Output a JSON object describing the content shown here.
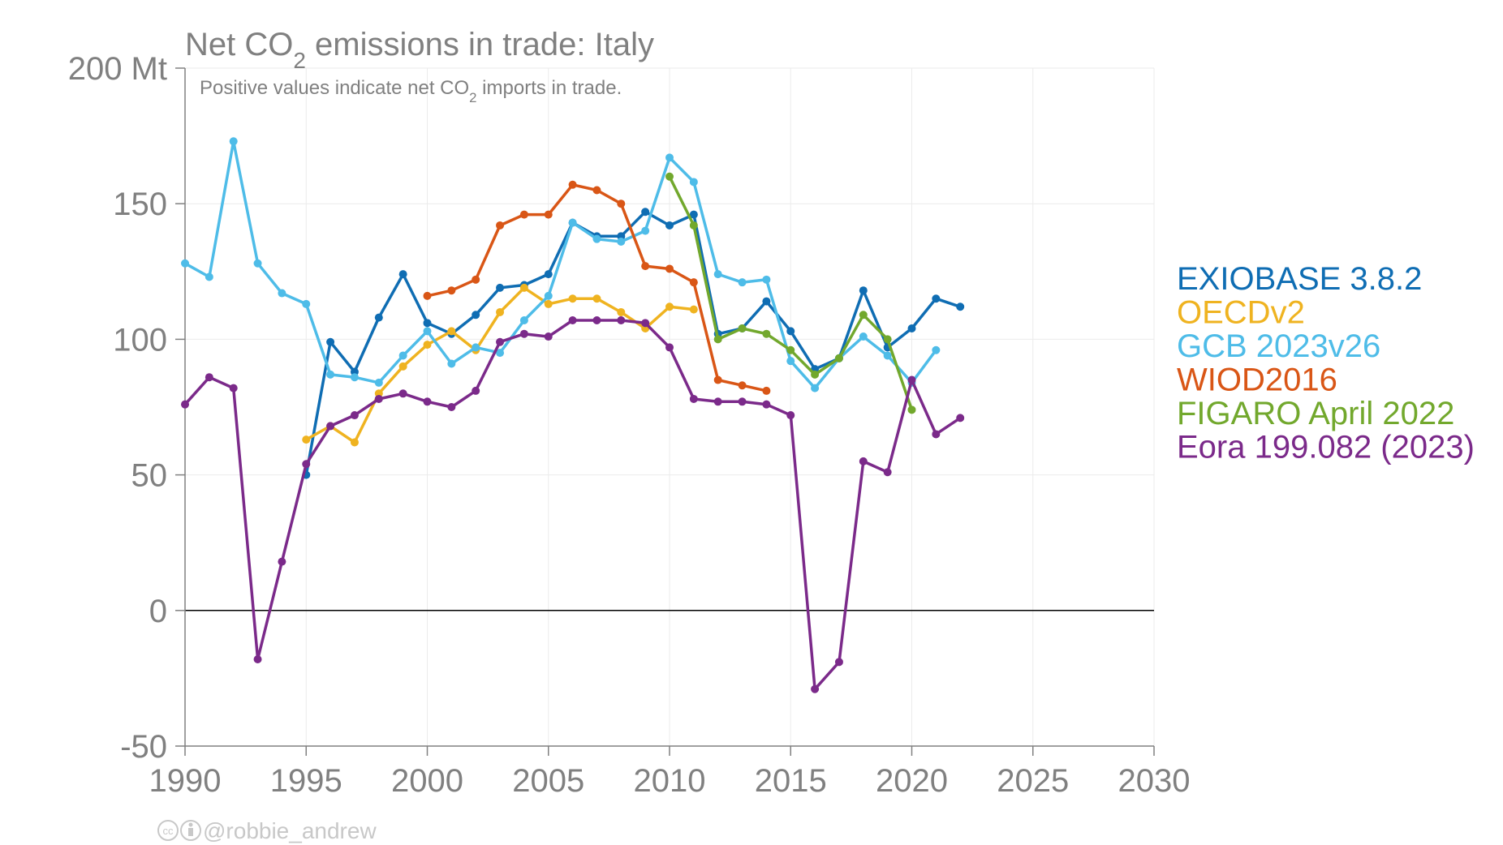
{
  "chart_data": {
    "type": "line",
    "title": "Net CO₂ emissions in trade: Italy",
    "subtitle": "Positive values indicate net CO₂ imports in trade.",
    "y_unit": "Mt",
    "xlabel": "",
    "ylabel": "",
    "xlim": [
      1990,
      2030
    ],
    "ylim": [
      -50,
      200
    ],
    "x_ticks": [
      1990,
      1995,
      2000,
      2005,
      2010,
      2015,
      2020,
      2025,
      2030
    ],
    "y_ticks": [
      -50,
      0,
      50,
      100,
      150,
      200
    ],
    "y_tick_labels": [
      "-50",
      "0",
      "50",
      "100",
      "150",
      "200 Mt"
    ],
    "grid": true,
    "legend_position": "right",
    "series": [
      {
        "name": "EXIOBASE 3.8.2",
        "color": "#0f6db3",
        "x": [
          1995,
          1996,
          1997,
          1998,
          1999,
          2000,
          2001,
          2002,
          2003,
          2004,
          2005,
          2006,
          2007,
          2008,
          2009,
          2010,
          2011,
          2012,
          2013,
          2014,
          2015,
          2016,
          2017,
          2018,
          2019,
          2020,
          2021,
          2022
        ],
        "y": [
          50,
          99,
          88,
          108,
          124,
          106,
          102,
          109,
          119,
          120,
          124,
          143,
          138,
          138,
          147,
          142,
          146,
          102,
          104,
          114,
          103,
          89,
          93,
          118,
          97,
          104,
          115,
          112
        ]
      },
      {
        "name": "OECDv2",
        "color": "#efb320",
        "x": [
          1995,
          1996,
          1997,
          1998,
          1999,
          2000,
          2001,
          2002,
          2003,
          2004,
          2005,
          2006,
          2007,
          2008,
          2009,
          2010,
          2011
        ],
        "y": [
          63,
          68,
          62,
          80,
          90,
          98,
          103,
          96,
          110,
          119,
          113,
          115,
          115,
          110,
          104,
          112,
          111
        ]
      },
      {
        "name": "GCB 2023v26",
        "color": "#4ebce8",
        "x": [
          1990,
          1991,
          1992,
          1993,
          1994,
          1995,
          1996,
          1997,
          1998,
          1999,
          2000,
          2001,
          2002,
          2003,
          2004,
          2005,
          2006,
          2007,
          2008,
          2009,
          2010,
          2011,
          2012,
          2013,
          2014,
          2015,
          2016,
          2017,
          2018,
          2019,
          2020,
          2021
        ],
        "y": [
          128,
          123,
          173,
          128,
          117,
          113,
          87,
          86,
          84,
          94,
          103,
          91,
          97,
          95,
          107,
          116,
          143,
          137,
          136,
          140,
          167,
          158,
          124,
          121,
          122,
          92,
          82,
          93,
          101,
          94,
          84,
          96
        ]
      },
      {
        "name": "WIOD2016",
        "color": "#d95616",
        "x": [
          2000,
          2001,
          2002,
          2003,
          2004,
          2005,
          2006,
          2007,
          2008,
          2009,
          2010,
          2011,
          2012,
          2013,
          2014
        ],
        "y": [
          116,
          118,
          122,
          142,
          146,
          146,
          157,
          155,
          150,
          127,
          126,
          121,
          85,
          83,
          81
        ]
      },
      {
        "name": "FIGARO April 2022",
        "color": "#72a82d",
        "x": [
          2010,
          2011,
          2012,
          2013,
          2014,
          2015,
          2016,
          2017,
          2018,
          2019,
          2020
        ],
        "y": [
          160,
          142,
          100,
          104,
          102,
          96,
          87,
          93,
          109,
          100,
          74
        ]
      },
      {
        "name": "Eora 199.082 (2023)",
        "color": "#7b2a8a",
        "x": [
          1990,
          1991,
          1992,
          1993,
          1994,
          1995,
          1996,
          1997,
          1998,
          1999,
          2000,
          2001,
          2002,
          2003,
          2004,
          2005,
          2006,
          2007,
          2008,
          2009,
          2010,
          2011,
          2012,
          2013,
          2014,
          2015,
          2016,
          2017,
          2018,
          2019,
          2020,
          2021,
          2022
        ],
        "y": [
          76,
          86,
          82,
          -18,
          18,
          54,
          68,
          72,
          78,
          80,
          77,
          75,
          81,
          99,
          102,
          101,
          107,
          107,
          107,
          106,
          97,
          78,
          77,
          77,
          76,
          72,
          -29,
          -19,
          55,
          51,
          85,
          65,
          71
        ]
      }
    ]
  },
  "credit": {
    "handle": "@robbie_andrew",
    "icons": [
      "creative-commons-icon",
      "attribution-icon"
    ]
  }
}
